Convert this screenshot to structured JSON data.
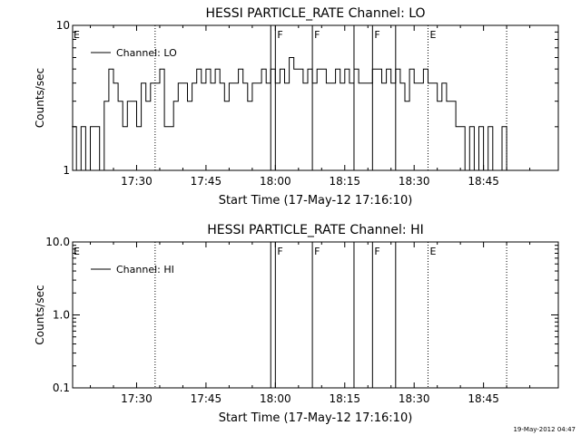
{
  "footer": {
    "timestamp": "19-May-2012 04:47"
  },
  "chart_data": [
    {
      "type": "line",
      "title": "HESSI PARTICLE_RATE Channel: LO",
      "xlabel": "Start Time (17-May-12 17:16:10)",
      "ylabel": "Counts/sec",
      "x_unit": "minutes",
      "x_range_minutes": [
        "17:16:10",
        "19:01:10"
      ],
      "xticks": [
        "17:30",
        "17:45",
        "18:00",
        "18:15",
        "18:30",
        "18:45"
      ],
      "yscale": "log",
      "ylim": [
        1,
        10
      ],
      "yticks": [
        "1",
        "10"
      ],
      "legend": {
        "entry": "Channel: LO",
        "position": "top-left"
      },
      "grid": false,
      "series": [
        {
          "name": "Channel: LO",
          "x": [
            "17:16",
            "17:17",
            "17:18",
            "17:19",
            "17:20",
            "17:21",
            "17:22",
            "17:23",
            "17:24",
            "17:25",
            "17:26",
            "17:27",
            "17:28",
            "17:29",
            "17:30",
            "17:31",
            "17:32",
            "17:33",
            "17:34",
            "17:35",
            "17:36",
            "17:37",
            "17:38",
            "17:39",
            "17:40",
            "17:41",
            "17:42",
            "17:43",
            "17:44",
            "17:45",
            "17:46",
            "17:47",
            "17:48",
            "17:49",
            "17:50",
            "17:51",
            "17:52",
            "17:53",
            "17:54",
            "17:55",
            "17:56",
            "17:57",
            "17:58",
            "17:59",
            "18:00",
            "18:01",
            "18:02",
            "18:03",
            "18:04",
            "18:05",
            "18:06",
            "18:07",
            "18:08",
            "18:09",
            "18:10",
            "18:11",
            "18:12",
            "18:13",
            "18:14",
            "18:15",
            "18:16",
            "18:17",
            "18:18",
            "18:19",
            "18:20",
            "18:21",
            "18:22",
            "18:23",
            "18:24",
            "18:25",
            "18:26",
            "18:27",
            "18:28",
            "18:29",
            "18:30",
            "18:31",
            "18:32",
            "18:33",
            "18:34",
            "18:35",
            "18:36",
            "18:37",
            "18:38",
            "18:39",
            "18:40",
            "18:41",
            "18:42",
            "18:43",
            "18:44",
            "18:45",
            "18:46",
            "18:47",
            "18:48",
            "18:49",
            "18:50"
          ],
          "y": [
            2,
            1,
            2,
            1,
            2,
            2,
            1,
            3,
            5,
            4,
            3,
            2,
            3,
            3,
            2,
            4,
            3,
            4,
            4,
            5,
            2,
            2,
            3,
            4,
            4,
            3,
            4,
            5,
            4,
            5,
            4,
            5,
            4,
            3,
            4,
            4,
            5,
            4,
            3,
            4,
            4,
            5,
            4,
            5,
            4,
            5,
            4,
            6,
            5,
            5,
            4,
            5,
            4,
            5,
            5,
            4,
            4,
            5,
            4,
            5,
            4,
            5,
            4,
            4,
            4,
            5,
            5,
            4,
            5,
            4,
            5,
            4,
            3,
            5,
            4,
            4,
            5,
            4,
            4,
            3,
            4,
            3,
            3,
            2,
            2,
            1,
            2,
            1,
            2,
            1,
            2,
            1,
            1,
            2,
            1
          ]
        }
      ],
      "markers": [
        {
          "time": "17:34",
          "style": "dotted",
          "label": ""
        },
        {
          "time": "17:59",
          "style": "solid",
          "label": ""
        },
        {
          "time": "18:00",
          "style": "solid",
          "label": "F"
        },
        {
          "time": "18:08",
          "style": "solid",
          "label": "F"
        },
        {
          "time": "18:17",
          "style": "solid",
          "label": ""
        },
        {
          "time": "18:21",
          "style": "solid",
          "label": "F"
        },
        {
          "time": "18:26",
          "style": "solid",
          "label": ""
        },
        {
          "time": "18:33",
          "style": "dotted",
          "label": "E"
        },
        {
          "time": "18:50",
          "style": "dotted",
          "label": ""
        }
      ],
      "start_label": "E"
    },
    {
      "type": "line",
      "title": "HESSI PARTICLE_RATE Channel: HI",
      "xlabel": "Start Time (17-May-12 17:16:10)",
      "ylabel": "Counts/sec",
      "x_range_minutes": [
        "17:16:10",
        "19:01:10"
      ],
      "xticks": [
        "17:30",
        "17:45",
        "18:00",
        "18:15",
        "18:30",
        "18:45"
      ],
      "yscale": "log",
      "ylim": [
        0.1,
        10
      ],
      "yticks": [
        "0.1",
        "1.0",
        "10.0"
      ],
      "legend": {
        "entry": "Channel: HI",
        "position": "top-left"
      },
      "grid": false,
      "series": [
        {
          "name": "Channel: HI",
          "x": [],
          "y": []
        }
      ],
      "markers": [
        {
          "time": "17:34",
          "style": "dotted",
          "label": ""
        },
        {
          "time": "17:59",
          "style": "solid",
          "label": ""
        },
        {
          "time": "18:00",
          "style": "solid",
          "label": "F"
        },
        {
          "time": "18:08",
          "style": "solid",
          "label": "F"
        },
        {
          "time": "18:17",
          "style": "solid",
          "label": ""
        },
        {
          "time": "18:21",
          "style": "solid",
          "label": "F"
        },
        {
          "time": "18:26",
          "style": "solid",
          "label": ""
        },
        {
          "time": "18:33",
          "style": "dotted",
          "label": "E"
        },
        {
          "time": "18:50",
          "style": "dotted",
          "label": ""
        }
      ],
      "start_label": "E"
    }
  ]
}
